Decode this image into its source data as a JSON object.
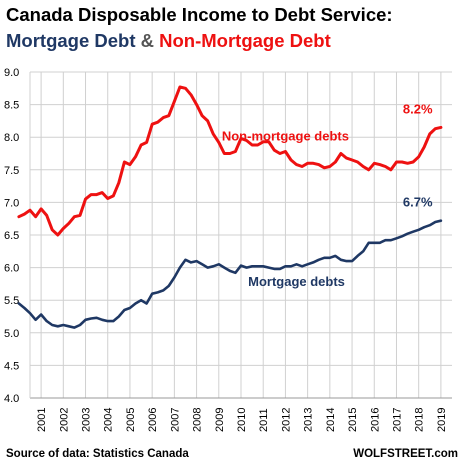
{
  "title": {
    "line1": "Canada Disposable Income to Debt Service:",
    "line2_part1": "Mortgage Debt",
    "line2_part2": " & ",
    "line2_part3": "Non-Mortgage Debt"
  },
  "footer": {
    "source": "Source of data: Statistics Canada",
    "brand": "WOLFSTREET.com"
  },
  "chart_data": {
    "type": "line",
    "ylim": [
      4.0,
      9.0
    ],
    "xlim": [
      2000.5,
      2019.5
    ],
    "yticks": [
      "9.0",
      "8.5",
      "8.0",
      "7.5",
      "7.0",
      "6.5",
      "6.0",
      "5.5",
      "5.0",
      "4.5",
      "4.0"
    ],
    "xticks": [
      "2001",
      "2002",
      "2003",
      "2004",
      "2005",
      "2006",
      "2007",
      "2008",
      "2009",
      "2010",
      "2011",
      "2012",
      "2013",
      "2014",
      "2015",
      "2016",
      "2017",
      "2018",
      "2019"
    ],
    "grid": true,
    "colors": {
      "mortgage": "#1f3864",
      "non_mortgage": "#ee1111"
    },
    "series": [
      {
        "name": "Non-mortgage debts",
        "end_label": "8.2%",
        "x": [
          2000.0,
          2000.25,
          2000.5,
          2000.75,
          2001.0,
          2001.25,
          2001.5,
          2001.75,
          2002.0,
          2002.25,
          2002.5,
          2002.75,
          2003.0,
          2003.25,
          2003.5,
          2003.75,
          2004.0,
          2004.25,
          2004.5,
          2004.75,
          2005.0,
          2005.25,
          2005.5,
          2005.75,
          2006.0,
          2006.25,
          2006.5,
          2006.75,
          2007.0,
          2007.25,
          2007.5,
          2007.75,
          2008.0,
          2008.25,
          2008.5,
          2008.75,
          2009.0,
          2009.25,
          2009.5,
          2009.75,
          2010.0,
          2010.25,
          2010.5,
          2010.75,
          2011.0,
          2011.25,
          2011.5,
          2011.75,
          2012.0,
          2012.25,
          2012.5,
          2012.75,
          2013.0,
          2013.25,
          2013.5,
          2013.75,
          2014.0,
          2014.25,
          2014.5,
          2014.75,
          2015.0,
          2015.25,
          2015.5,
          2015.75,
          2016.0,
          2016.25,
          2016.5,
          2016.75,
          2017.0,
          2017.25,
          2017.5,
          2017.75,
          2018.0,
          2018.25,
          2018.5,
          2018.75,
          2019.0
        ],
        "values": [
          6.78,
          6.82,
          6.88,
          6.78,
          6.9,
          6.8,
          6.58,
          6.5,
          6.6,
          6.68,
          6.78,
          6.8,
          7.05,
          7.12,
          7.12,
          7.15,
          7.06,
          7.1,
          7.3,
          7.62,
          7.58,
          7.7,
          7.88,
          7.92,
          8.2,
          8.23,
          8.3,
          8.33,
          8.55,
          8.77,
          8.75,
          8.65,
          8.5,
          8.33,
          8.25,
          8.05,
          7.92,
          7.75,
          7.75,
          7.78,
          7.98,
          7.95,
          7.88,
          7.88,
          7.93,
          7.93,
          7.8,
          7.75,
          7.78,
          7.65,
          7.58,
          7.55,
          7.6,
          7.6,
          7.58,
          7.53,
          7.55,
          7.62,
          7.75,
          7.68,
          7.65,
          7.62,
          7.55,
          7.5,
          7.6,
          7.58,
          7.55,
          7.5,
          7.62,
          7.62,
          7.6,
          7.62,
          7.7,
          7.85,
          8.05,
          8.13,
          8.15
        ]
      },
      {
        "name": "Mortgage debts",
        "end_label": "6.7%",
        "x": [
          2000.0,
          2000.25,
          2000.5,
          2000.75,
          2001.0,
          2001.25,
          2001.5,
          2001.75,
          2002.0,
          2002.25,
          2002.5,
          2002.75,
          2003.0,
          2003.25,
          2003.5,
          2003.75,
          2004.0,
          2004.25,
          2004.5,
          2004.75,
          2005.0,
          2005.25,
          2005.5,
          2005.75,
          2006.0,
          2006.25,
          2006.5,
          2006.75,
          2007.0,
          2007.25,
          2007.5,
          2007.75,
          2008.0,
          2008.25,
          2008.5,
          2008.75,
          2009.0,
          2009.25,
          2009.5,
          2009.75,
          2010.0,
          2010.25,
          2010.5,
          2010.75,
          2011.0,
          2011.25,
          2011.5,
          2011.75,
          2012.0,
          2012.25,
          2012.5,
          2012.75,
          2013.0,
          2013.25,
          2013.5,
          2013.75,
          2014.0,
          2014.25,
          2014.5,
          2014.75,
          2015.0,
          2015.25,
          2015.5,
          2015.75,
          2016.0,
          2016.25,
          2016.5,
          2016.75,
          2017.0,
          2017.25,
          2017.5,
          2017.75,
          2018.0,
          2018.25,
          2018.5,
          2018.75,
          2019.0
        ],
        "values": [
          5.45,
          5.38,
          5.3,
          5.2,
          5.28,
          5.18,
          5.12,
          5.1,
          5.12,
          5.1,
          5.08,
          5.12,
          5.2,
          5.22,
          5.23,
          5.2,
          5.18,
          5.18,
          5.25,
          5.35,
          5.38,
          5.45,
          5.5,
          5.45,
          5.6,
          5.62,
          5.65,
          5.72,
          5.85,
          6.0,
          6.12,
          6.08,
          6.1,
          6.05,
          6.0,
          6.02,
          6.05,
          6.0,
          5.95,
          5.92,
          6.03,
          6.0,
          6.02,
          6.02,
          6.02,
          6.0,
          5.98,
          5.98,
          6.02,
          6.02,
          6.05,
          6.02,
          6.05,
          6.08,
          6.12,
          6.15,
          6.15,
          6.18,
          6.12,
          6.1,
          6.1,
          6.18,
          6.25,
          6.38,
          6.38,
          6.38,
          6.42,
          6.42,
          6.45,
          6.48,
          6.52,
          6.55,
          6.58,
          6.62,
          6.65,
          6.7,
          6.72
        ]
      }
    ],
    "annotations": [
      {
        "text": "Non-mortgage debts",
        "x": 2012.0,
        "y": 7.95,
        "series": "Non-mortgage debts"
      },
      {
        "text": "Mortgage debts",
        "x": 2012.5,
        "y": 5.72,
        "series": "Mortgage debts"
      }
    ]
  }
}
